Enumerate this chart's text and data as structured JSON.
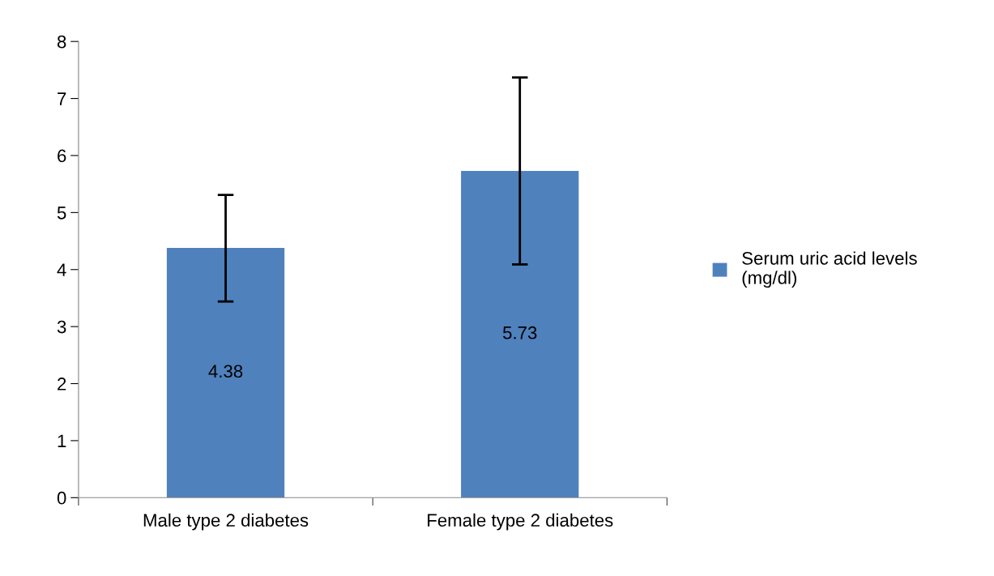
{
  "chart_data": {
    "type": "bar",
    "categories": [
      "Male type 2 diabetes",
      "Female type 2 diabetes"
    ],
    "series": [
      {
        "name": "Serum uric acid levels (mg/dl)",
        "color": "#4f81bd",
        "values": [
          4.38,
          5.73
        ],
        "errors": [
          [
            3.44,
            5.31
          ],
          [
            4.09,
            7.37
          ]
        ]
      }
    ],
    "ylim": [
      0,
      8
    ],
    "yticks": [
      0,
      1,
      2,
      3,
      4,
      5,
      6,
      7,
      8
    ],
    "grid": false,
    "legend": "right",
    "data_labels": true
  }
}
